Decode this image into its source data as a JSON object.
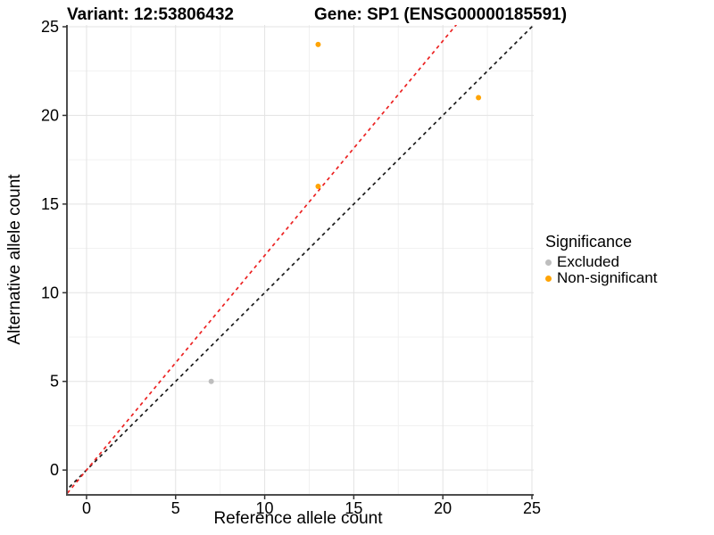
{
  "chart_data": {
    "type": "scatter",
    "title_left": "Variant: 12:53806432",
    "title_right": "Gene: SP1 (ENSG00000185591)",
    "xlabel": "Reference allele count",
    "ylabel": "Alternative allele count",
    "xlim": [
      -1.1,
      25.1
    ],
    "ylim": [
      -1.4,
      25.1
    ],
    "xticks": [
      0,
      5,
      10,
      15,
      20,
      25
    ],
    "yticks": [
      0,
      5,
      10,
      15,
      20,
      25
    ],
    "xtick_labels": [
      "0",
      "5",
      "10",
      "15",
      "20",
      "25"
    ],
    "ytick_labels": [
      "0",
      "5",
      "10",
      "15",
      "20",
      "25"
    ],
    "xminor": [
      2.5,
      7.5,
      12.5,
      17.5,
      22.5
    ],
    "yminor": [
      2.5,
      7.5,
      12.5,
      17.5,
      22.5
    ],
    "grid": true,
    "legend_position": "right",
    "series": [
      {
        "name": "Excluded",
        "color": "#BEBEBE",
        "points": [
          [
            7,
            5
          ]
        ]
      },
      {
        "name": "Non-significant",
        "color": "#FFA405",
        "points": [
          [
            13,
            24
          ],
          [
            13,
            16
          ],
          [
            22,
            21
          ]
        ]
      }
    ],
    "lines": [
      {
        "name": "identity-line",
        "color": "#1A1A1A",
        "style": "dashed",
        "slope": 1.0,
        "intercept": 0
      },
      {
        "name": "expected-ratio-line",
        "color": "#EC2222",
        "style": "dashed",
        "slope": 1.21,
        "intercept": 0
      }
    ],
    "legend": {
      "title": "Significance",
      "entries": [
        {
          "label": "Excluded",
          "color": "#BEBEBE"
        },
        {
          "label": "Non-significant",
          "color": "#FFA405"
        }
      ]
    }
  },
  "colors": {
    "background": "#FFFFFF",
    "grid_major": "#E3E3E3",
    "grid_minor": "#F1F1F1",
    "axis_line": "#4D4D4D",
    "tick_mark": "#333333",
    "tick_text": "#000000",
    "point_radius": 3
  }
}
